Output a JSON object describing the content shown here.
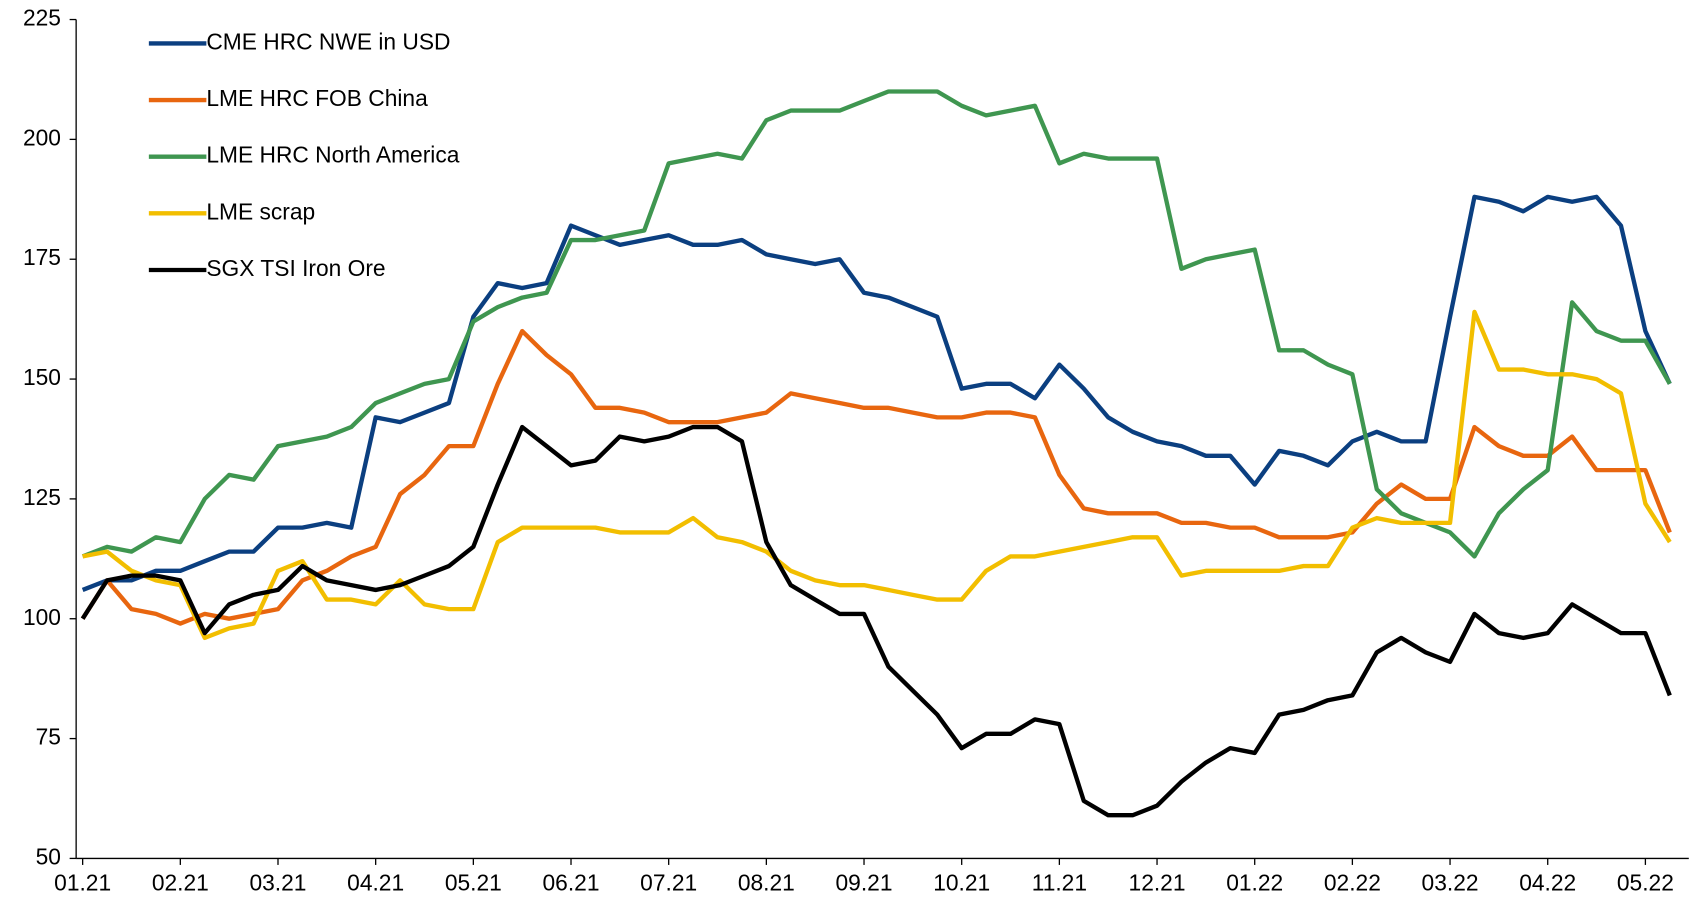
{
  "chart_data": {
    "type": "line",
    "categories": [
      "01.21",
      null,
      null,
      null,
      "02.21",
      null,
      null,
      null,
      "03.21",
      null,
      null,
      null,
      "04.21",
      null,
      null,
      null,
      "05.21",
      null,
      null,
      null,
      "06.21",
      null,
      null,
      null,
      "07.21",
      null,
      null,
      null,
      "08.21",
      null,
      null,
      null,
      "09.21",
      null,
      null,
      null,
      "10.21",
      null,
      null,
      null,
      "11.21",
      null,
      null,
      null,
      "12.21",
      null,
      null,
      null,
      "01.22",
      null,
      null,
      null,
      "02.22",
      null,
      null,
      null,
      "03.22",
      null,
      null,
      null,
      "04.22",
      null,
      null,
      null,
      "05.22",
      null
    ],
    "series": [
      {
        "name": "CME HRC NWE in USD",
        "color": "#0b3f80",
        "values": [
          106,
          108,
          108,
          110,
          110,
          112,
          114,
          114,
          119,
          119,
          120,
          119,
          142,
          141,
          143,
          145,
          163,
          170,
          169,
          170,
          182,
          180,
          178,
          179,
          180,
          178,
          178,
          179,
          176,
          175,
          174,
          175,
          168,
          167,
          165,
          163,
          148,
          149,
          149,
          146,
          153,
          148,
          142,
          139,
          137,
          136,
          134,
          134,
          128,
          135,
          134,
          132,
          137,
          139,
          137,
          137,
          163,
          188,
          187,
          185,
          188,
          187,
          188,
          182,
          160,
          149
        ]
      },
      {
        "name": "LME HRC FOB China",
        "color": "#e8660f",
        "values": [
          100,
          108,
          102,
          101,
          99,
          101,
          100,
          101,
          102,
          108,
          110,
          113,
          115,
          126,
          130,
          136,
          136,
          149,
          160,
          155,
          151,
          144,
          144,
          143,
          141,
          141,
          141,
          142,
          143,
          147,
          146,
          145,
          144,
          144,
          143,
          142,
          142,
          143,
          143,
          142,
          130,
          123,
          122,
          122,
          122,
          120,
          120,
          119,
          119,
          117,
          117,
          117,
          118,
          124,
          128,
          125,
          125,
          140,
          136,
          134,
          134,
          138,
          131,
          131,
          131,
          118
        ]
      },
      {
        "name": "LME HRC North America",
        "color": "#3f9650",
        "values": [
          113,
          115,
          114,
          117,
          116,
          125,
          130,
          129,
          136,
          137,
          138,
          140,
          145,
          147,
          149,
          150,
          162,
          165,
          167,
          168,
          179,
          179,
          180,
          181,
          195,
          196,
          197,
          196,
          204,
          206,
          206,
          206,
          208,
          210,
          210,
          210,
          207,
          205,
          206,
          207,
          195,
          197,
          196,
          196,
          196,
          173,
          175,
          176,
          177,
          156,
          156,
          153,
          151,
          127,
          122,
          120,
          118,
          113,
          122,
          127,
          131,
          166,
          160,
          158,
          158,
          149
        ]
      },
      {
        "name": "LME scrap",
        "color": "#f2be00",
        "values": [
          113,
          114,
          110,
          108,
          107,
          96,
          98,
          99,
          110,
          112,
          104,
          104,
          103,
          108,
          103,
          102,
          102,
          116,
          119,
          119,
          119,
          119,
          118,
          118,
          118,
          121,
          117,
          116,
          114,
          110,
          108,
          107,
          107,
          106,
          105,
          104,
          104,
          110,
          113,
          113,
          114,
          115,
          116,
          117,
          117,
          109,
          110,
          110,
          110,
          110,
          111,
          111,
          119,
          121,
          120,
          120,
          120,
          164,
          152,
          152,
          151,
          151,
          150,
          147,
          124,
          116
        ]
      },
      {
        "name": "SGX TSI Iron Ore",
        "color": "#000000",
        "values": [
          100,
          108,
          109,
          109,
          108,
          97,
          103,
          105,
          106,
          111,
          108,
          107,
          106,
          107,
          109,
          111,
          115,
          128,
          140,
          136,
          132,
          133,
          138,
          137,
          138,
          140,
          140,
          137,
          116,
          107,
          104,
          101,
          101,
          90,
          85,
          80,
          73,
          76,
          76,
          79,
          78,
          62,
          59,
          59,
          61,
          66,
          70,
          73,
          72,
          80,
          81,
          83,
          84,
          93,
          96,
          93,
          91,
          101,
          97,
          96,
          97,
          103,
          100,
          97,
          97,
          84
        ]
      }
    ],
    "ylim": [
      50,
      225
    ],
    "yticks": [
      50,
      75,
      100,
      125,
      150,
      175,
      200,
      225
    ],
    "legend": "top-left"
  }
}
